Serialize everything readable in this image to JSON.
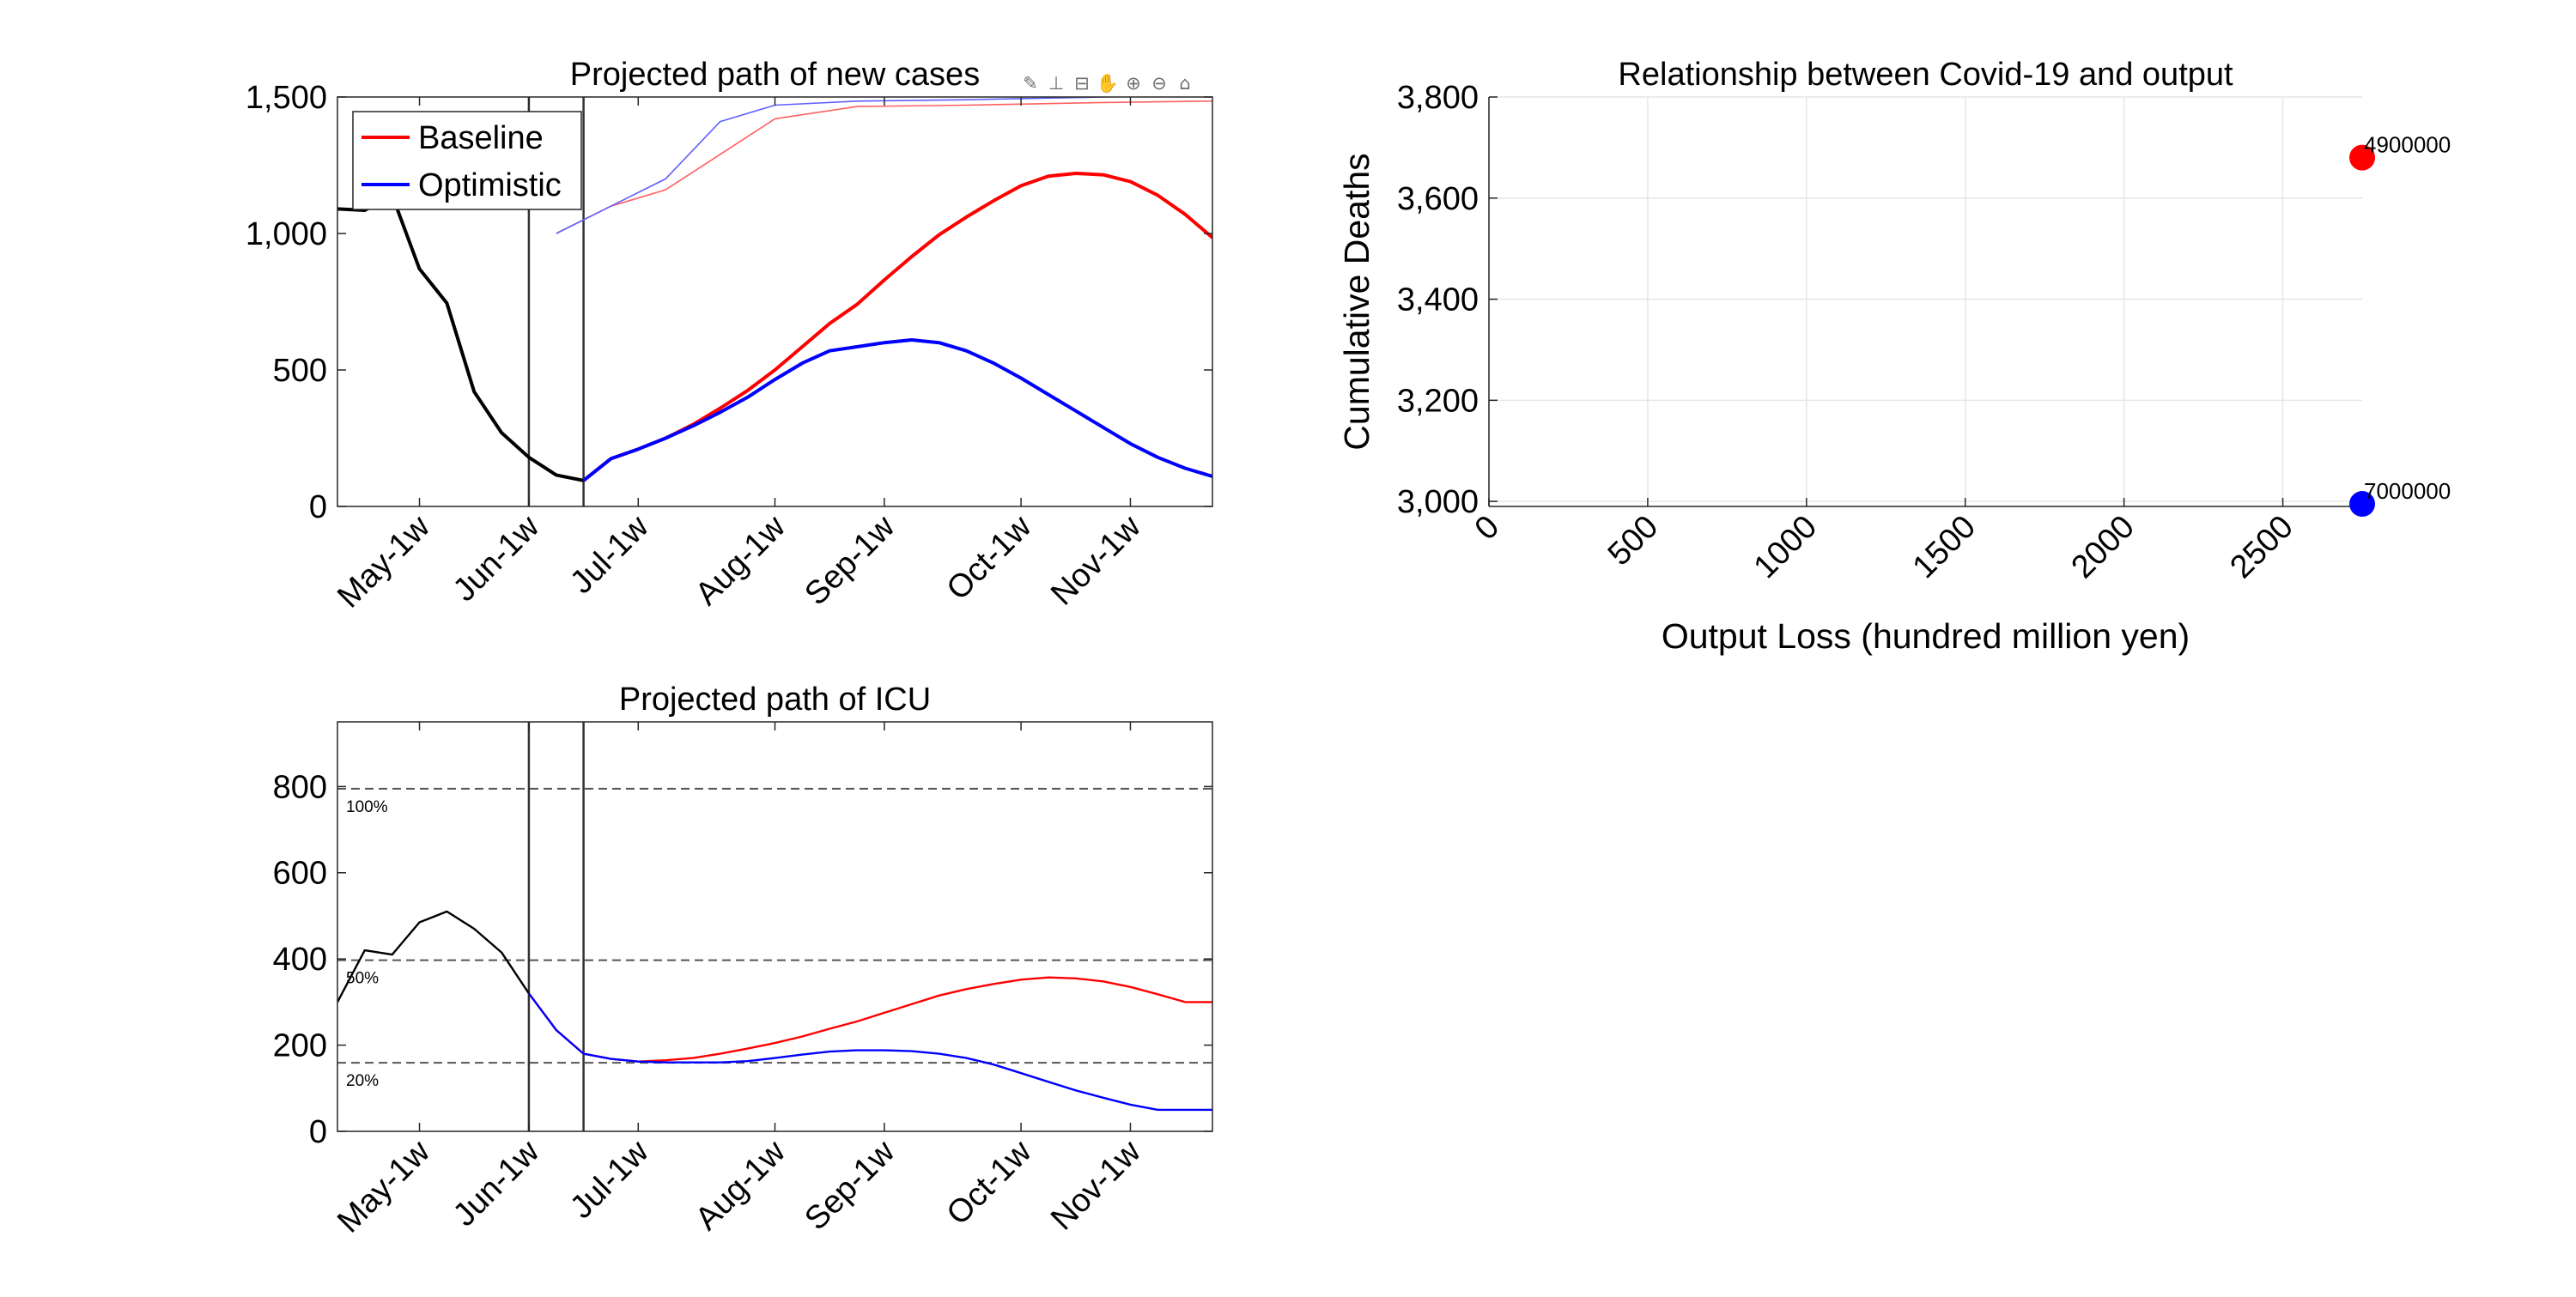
{
  "toolbar": {
    "icons": [
      {
        "name": "brush-icon",
        "glyph": "✎"
      },
      {
        "name": "datatip-icon",
        "glyph": "⊥"
      },
      {
        "name": "rotate-icon",
        "glyph": "⊟"
      },
      {
        "name": "pan-hand-icon",
        "glyph": "✋"
      },
      {
        "name": "zoom-in-icon",
        "glyph": "⊕"
      },
      {
        "name": "zoom-out-icon",
        "glyph": "⊖"
      },
      {
        "name": "home-icon",
        "glyph": "⌂"
      }
    ]
  },
  "chart_data": [
    {
      "id": "new_cases",
      "type": "line",
      "title": "Projected path of new cases",
      "xlabel": "",
      "ylabel": "",
      "xlim": [
        0,
        32
      ],
      "ylim": [
        0,
        1500
      ],
      "yticks": [
        0,
        500,
        1000,
        1500
      ],
      "ytick_labels": [
        "0",
        "500",
        "1,000",
        "1,500"
      ],
      "xtick_pos": [
        3,
        7,
        11,
        16,
        20,
        25,
        29
      ],
      "xtick_labels": [
        "May-1w",
        "Jun-1w",
        "Jul-1w",
        "Aug-1w",
        "Sep-1w",
        "Oct-1w",
        "Nov-1w"
      ],
      "vlines": [
        7,
        9
      ],
      "grid": false,
      "legend": {
        "position": "top-left",
        "entries": [
          "Baseline",
          "Optimistic"
        ]
      },
      "series": [
        {
          "name": "",
          "color": "#000000",
          "width": 4,
          "x": [
            0,
            1,
            2,
            3,
            4,
            5,
            6,
            7,
            8,
            9
          ],
          "y": [
            1090,
            1085,
            1140,
            870,
            745,
            420,
            270,
            180,
            115,
            95
          ]
        },
        {
          "name": "Baseline",
          "color": "#ff0000",
          "width": 4,
          "x": [
            9,
            10,
            11,
            12,
            13,
            14,
            15,
            16,
            17,
            18,
            19,
            20,
            21,
            22,
            23,
            24,
            25,
            26,
            27,
            28,
            29,
            30,
            31,
            32
          ],
          "y": [
            95,
            175,
            210,
            250,
            300,
            360,
            425,
            500,
            585,
            670,
            740,
            830,
            915,
            995,
            1060,
            1120,
            1175,
            1210,
            1220,
            1215,
            1190,
            1140,
            1070,
            985
          ]
        },
        {
          "name": "Optimistic",
          "color": "#0000ff",
          "width": 4,
          "x": [
            9,
            10,
            11,
            12,
            13,
            14,
            15,
            16,
            17,
            18,
            19,
            20,
            21,
            22,
            23,
            24,
            25,
            26,
            27,
            28,
            29,
            30,
            31,
            32
          ],
          "y": [
            95,
            175,
            210,
            250,
            295,
            345,
            400,
            465,
            525,
            570,
            585,
            600,
            610,
            600,
            570,
            525,
            470,
            410,
            350,
            290,
            230,
            180,
            140,
            110
          ]
        },
        {
          "name": "",
          "color": "#ff6060",
          "width": 1.6,
          "x": [
            8,
            9,
            10,
            12,
            14,
            16,
            19,
            23,
            28,
            32
          ],
          "y": [
            1000,
            1050,
            1100,
            1160,
            1290,
            1420,
            1465,
            1470,
            1480,
            1485
          ]
        },
        {
          "name": "",
          "color": "#6060ff",
          "width": 1.6,
          "x": [
            8,
            9,
            10,
            12,
            14,
            16,
            19,
            23,
            28,
            32
          ],
          "y": [
            1000,
            1050,
            1100,
            1200,
            1410,
            1470,
            1485,
            1490,
            1500,
            1510
          ]
        }
      ]
    },
    {
      "id": "icu",
      "type": "line",
      "title": "Projected path of ICU",
      "xlabel": "",
      "ylabel": "",
      "xlim": [
        0,
        32
      ],
      "ylim": [
        0,
        950
      ],
      "yticks": [
        0,
        200,
        400,
        600,
        800
      ],
      "ytick_labels": [
        "0",
        "200",
        "400",
        "600",
        "800"
      ],
      "xtick_pos": [
        3,
        7,
        11,
        16,
        20,
        25,
        29
      ],
      "xtick_labels": [
        "May-1w",
        "Jun-1w",
        "Jul-1w",
        "Aug-1w",
        "Sep-1w",
        "Oct-1w",
        "Nov-1w"
      ],
      "vlines": [
        7,
        9
      ],
      "grid": false,
      "hlines": [
        {
          "y": 795,
          "label": "100%"
        },
        {
          "y": 397,
          "label": "50%"
        },
        {
          "y": 159,
          "label": "20%"
        }
      ],
      "series": [
        {
          "name": "",
          "color": "#000000",
          "width": 2.4,
          "x": [
            0,
            1,
            2,
            3,
            4,
            5,
            6,
            7
          ],
          "y": [
            300,
            420,
            410,
            485,
            510,
            470,
            415,
            320
          ]
        },
        {
          "name": "",
          "color": "#ff0000",
          "width": 2.4,
          "x": [
            7,
            8,
            9,
            10,
            11,
            12,
            13,
            14,
            15,
            16,
            17,
            18,
            19,
            20,
            21,
            22,
            23,
            24,
            25,
            26,
            27,
            28,
            29,
            30,
            31,
            32
          ],
          "y": [
            320,
            235,
            180,
            168,
            162,
            165,
            170,
            180,
            192,
            205,
            220,
            238,
            255,
            275,
            295,
            315,
            330,
            342,
            352,
            357,
            355,
            348,
            335,
            318,
            300,
            300
          ]
        },
        {
          "name": "",
          "color": "#0000ff",
          "width": 2.4,
          "x": [
            7,
            8,
            9,
            10,
            11,
            12,
            13,
            14,
            15,
            16,
            17,
            18,
            19,
            20,
            21,
            22,
            23,
            24,
            25,
            26,
            27,
            28,
            29,
            30,
            31,
            32
          ],
          "y": [
            320,
            235,
            180,
            168,
            162,
            160,
            160,
            160,
            163,
            170,
            178,
            185,
            188,
            188,
            186,
            180,
            170,
            155,
            135,
            115,
            95,
            78,
            62,
            50,
            50,
            50
          ]
        }
      ]
    },
    {
      "id": "relationship",
      "type": "scatter",
      "title": "Relationship between Covid-19 and output",
      "xlabel": "Output Loss (hundred million yen)",
      "ylabel": "Cumulative Deaths",
      "xlim": [
        0,
        2750
      ],
      "ylim": [
        2990,
        3800
      ],
      "xticks": [
        0,
        500,
        1000,
        1500,
        2000,
        2500
      ],
      "xtick_labels": [
        "0",
        "500",
        "1000",
        "1500",
        "2000",
        "2500"
      ],
      "yticks": [
        3000,
        3200,
        3400,
        3600,
        3800
      ],
      "ytick_labels": [
        "3,000",
        "3,200",
        "3,400",
        "3,600",
        "3,800"
      ],
      "grid": true,
      "points": [
        {
          "x": 2750,
          "y": 3680,
          "label": "4900000",
          "color": "#ff0000"
        },
        {
          "x": 2750,
          "y": 2995,
          "label": "7000000",
          "color": "#0000ff"
        }
      ]
    }
  ]
}
